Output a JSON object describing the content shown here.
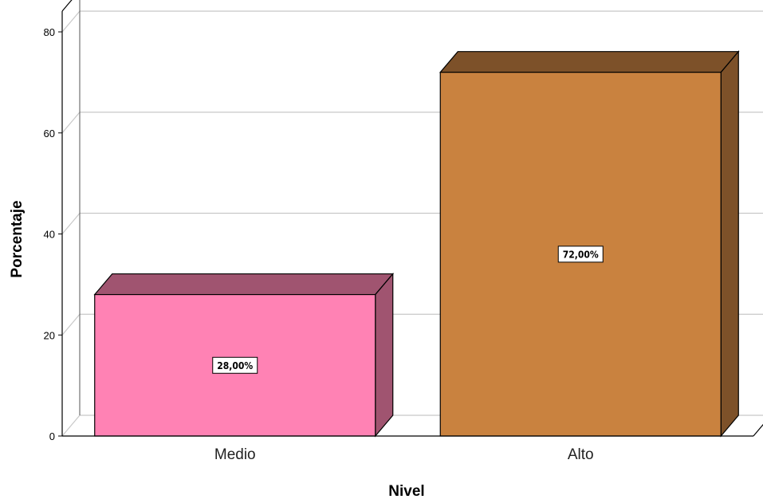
{
  "chart_data": {
    "type": "bar",
    "title": "",
    "xlabel": "Nivel",
    "ylabel": "Porcentaje",
    "categories": [
      "Medio",
      "Alto"
    ],
    "values": [
      28,
      72
    ],
    "data_labels": [
      "28,00%",
      "72,00%"
    ],
    "ylim": [
      0,
      80
    ],
    "yticks": [
      0,
      20,
      40,
      60,
      80
    ],
    "ytick_labels": [
      "0",
      "20",
      "40",
      "60",
      "80"
    ],
    "grid": true,
    "three_d": true,
    "colors": {
      "bars": [
        "#ff82b4",
        "#c9823f"
      ],
      "bar_sides": [
        "#a05470",
        "#7d5129"
      ],
      "grid": "#c8c8c8",
      "axis": "#000000"
    }
  }
}
